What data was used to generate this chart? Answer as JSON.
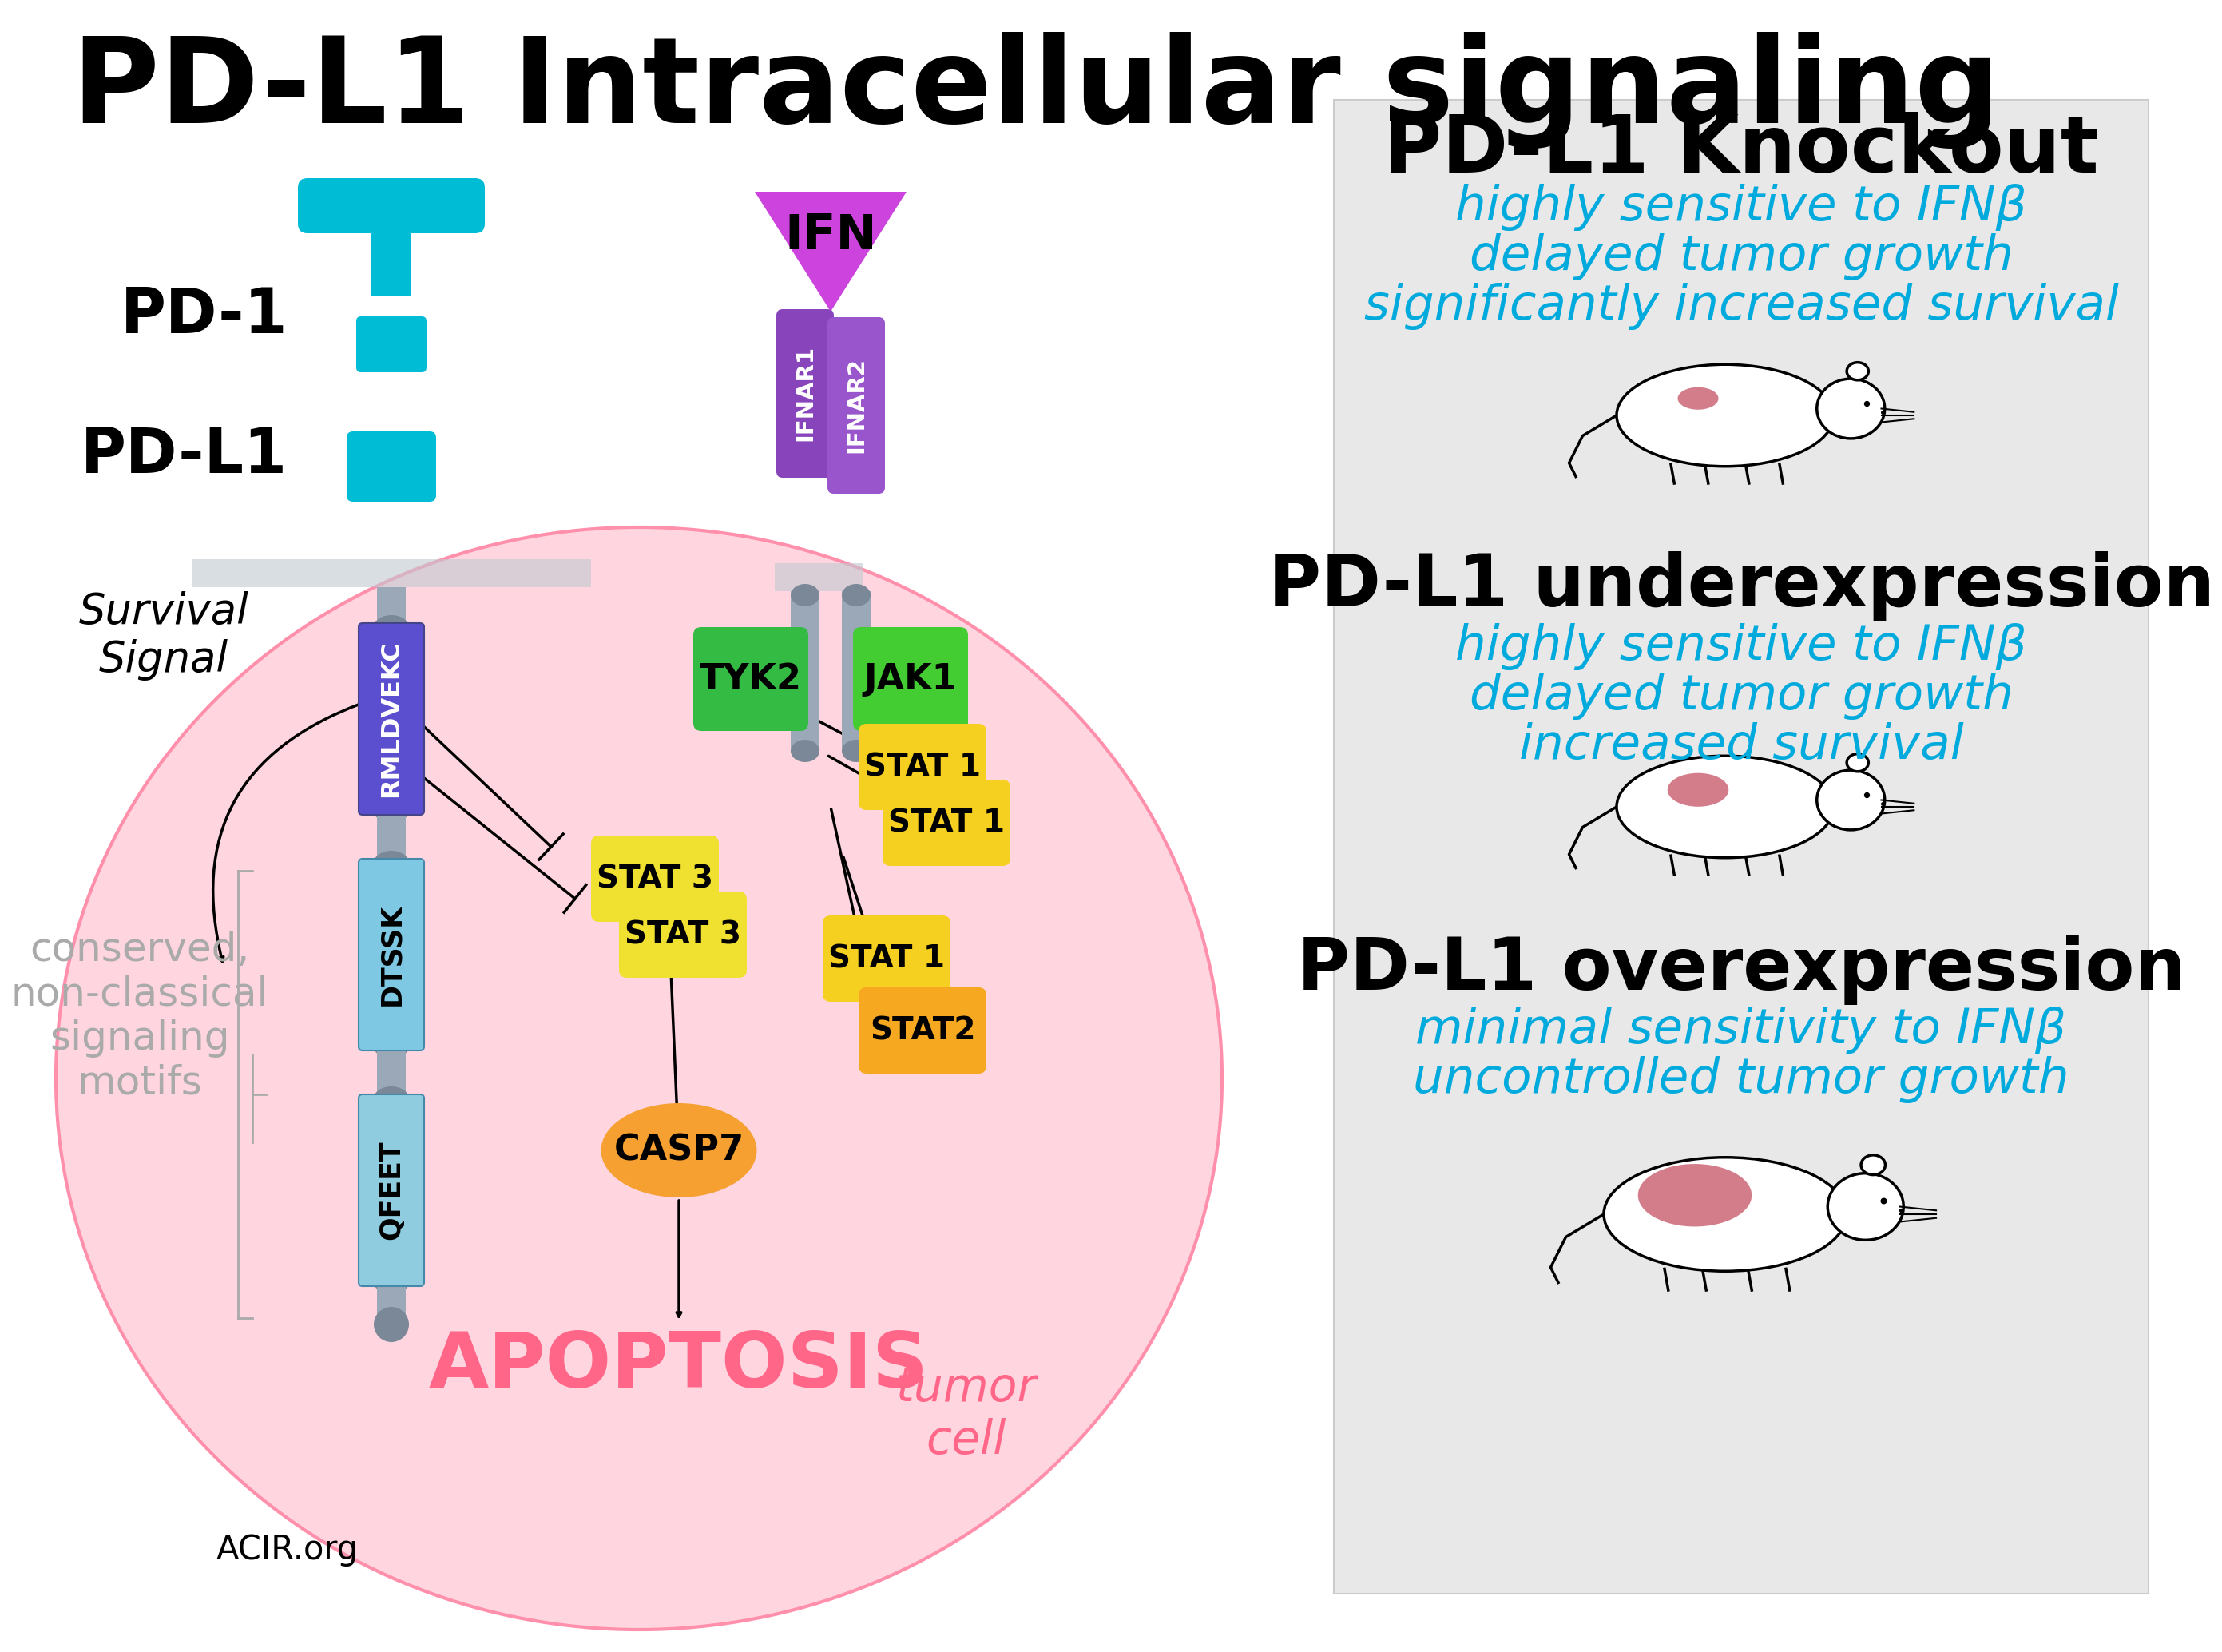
{
  "title": "PD-L1 Intracellular signaling",
  "bg_color": "#ffffff",
  "cell_color": "#ffd6e0",
  "cell_border_color": "#ff8fab",
  "panel_color": "#e8e8e8",
  "pd1_color": "#00bcd4",
  "membrane_color": "#9aa8b8",
  "rmldvekc_color": "#5b4fcf",
  "dtssk_color": "#7ec8e3",
  "qfeet_color": "#90cce0",
  "shaft_color": "#9aa8b8",
  "connector_color": "#7a8898",
  "ifn_color": "#cc44dd",
  "ifnar1_color": "#8844bb",
  "ifnar2_color": "#9955cc",
  "tyk2_color": "#33bb44",
  "jak1_color": "#44cc33",
  "stat1_color": "#f5d020",
  "stat2_color": "#f5a820",
  "stat3_color": "#f0e030",
  "casp7_color": "#f5a030",
  "cyan_text": "#00aadd",
  "pink_text": "#ff6688",
  "ko_title": "PD-L1 Knockout",
  "ko_lines": [
    "highly sensitive to IFNβ",
    "delayed tumor growth",
    "significantly increased survival"
  ],
  "under_title": "PD-L1 underexpression",
  "under_lines": [
    "highly sensitive to IFNβ",
    "delayed tumor growth",
    "increased survival"
  ],
  "over_title": "PD-L1 overexpression",
  "over_lines": [
    "minimal sensitivity to IFNβ",
    "uncontrolled tumor growth"
  ],
  "acir_text": "ACIR.org",
  "tumor_text": "tumor\ncell",
  "apoptosis_text": "APOPTOSIS",
  "survival_signal_text": "Survival\nSignal",
  "conserved_text": "conserved,\nnon-classical\nsignaling\nmotifs"
}
